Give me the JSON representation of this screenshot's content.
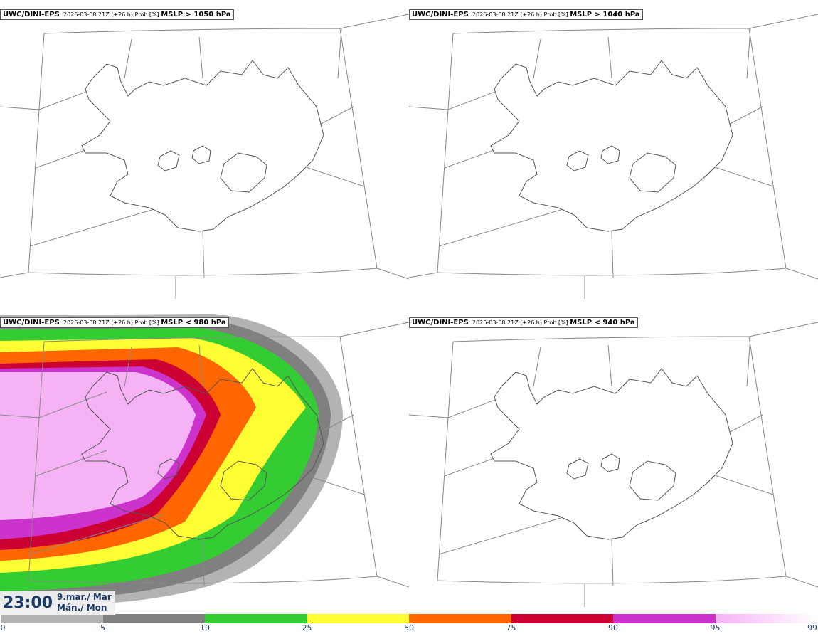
{
  "panels": [
    {
      "source": "UWC/DINI-EPS",
      "meta": ": 2026-03-08 21Z (+26 h) Prob [%] ",
      "threshold": "MSLP > 1050 hPa"
    },
    {
      "source": "UWC/DINI-EPS",
      "meta": ": 2026-03-08 21Z (+26 h) Prob [%] ",
      "threshold": "MSLP > 1040 hPa"
    },
    {
      "source": "UWC/DINI-EPS",
      "meta": ": 2026-03-08 21Z (+26 h) Prob [%] ",
      "threshold": "MSLP < 980 hPa"
    },
    {
      "source": "UWC/DINI-EPS",
      "meta": ": 2026-03-08 21Z (+26 h) Prob [%] ",
      "threshold": "MSLP < 940 hPa"
    }
  ],
  "time": {
    "clock": "23:00",
    "date_line1": "9.mar./ Mar",
    "date_line2": "Mán./ Mon"
  },
  "colorbar": {
    "ticks": [
      "0",
      "5",
      "10",
      "25",
      "50",
      "75",
      "90",
      "95",
      "99"
    ],
    "colors": [
      "#ffffff",
      "#b3b3b3",
      "#808080",
      "#33cc33",
      "#ffff33",
      "#ff6600",
      "#cc0033",
      "#cc33cc",
      "#f5b3f5"
    ]
  }
}
